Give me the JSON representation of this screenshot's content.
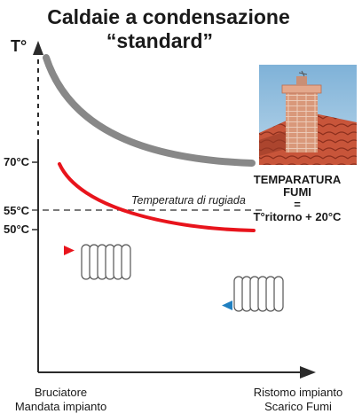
{
  "title": {
    "line1": "Caldaie a condensazione",
    "line2": "“standard”"
  },
  "axis": {
    "y_label": "T°",
    "ticks": [
      "70°C",
      "55°C",
      "50°C"
    ],
    "x_start_label": [
      "Bruciatore",
      "Mandata impianto"
    ],
    "x_end_label": [
      "Ristomo impianto",
      "Scarico Fumi"
    ]
  },
  "dew_point_label": "Temperatura di rugiada",
  "formula": {
    "line1": "TEMPARATURA",
    "line2": "FUMI",
    "line3": "=",
    "line4": "T°ritorno + 20°C"
  },
  "colors": {
    "upper_curve": "#888888",
    "lower_curve": "#e8141c",
    "supply_marker": "#e8141c",
    "return_marker": "#1f7fc0"
  },
  "icons": [
    "radiator-icon",
    "chimney-roof-photo"
  ]
}
